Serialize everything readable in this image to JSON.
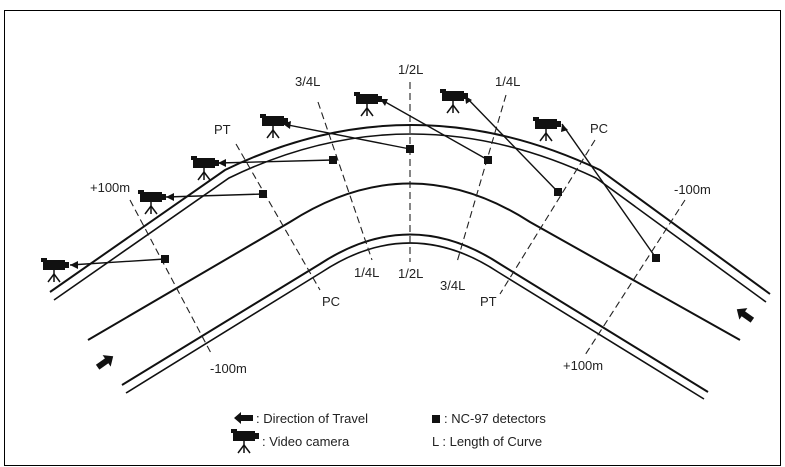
{
  "section_labels": {
    "plus100_left": "+100m",
    "pt_left": "PT",
    "q34_left": "3/4L",
    "half_top": "1/2L",
    "q14_right": "1/4L",
    "pc_right": "PC",
    "minus100_right": "-100m",
    "pc_left_bottom": "PC",
    "q14_left_bottom": "1/4L",
    "half_bottom": "1/2L",
    "q34_bottom": "3/4L",
    "pt_right_bottom": "PT",
    "minus100_left_bottom": "-100m",
    "plus100_right_bottom": "+100m"
  },
  "legend": {
    "direction": ": Direction of Travel",
    "camera": ": Video camera",
    "detector": ": NC-97 detectors",
    "length": "L  : Length of Curve"
  },
  "icons": {
    "camera": "video-camera-icon",
    "detector": "detector-square-icon",
    "arrow": "travel-direction-arrow-icon"
  }
}
